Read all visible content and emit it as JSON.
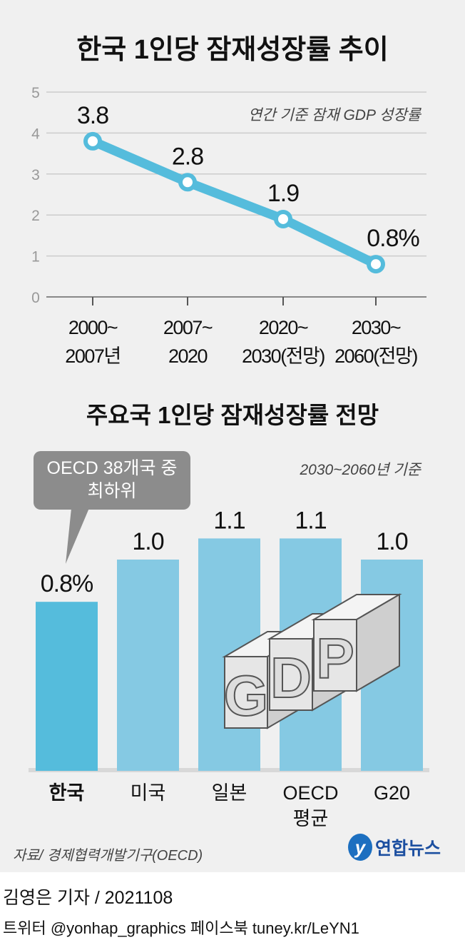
{
  "chart_data": [
    {
      "type": "line",
      "title": "한국 1인당 잠재성장률 추이",
      "subtitle": "연간 기준 잠재 GDP 성장률",
      "categories": [
        [
          "2000~",
          "2007년"
        ],
        [
          "2007~",
          "2020"
        ],
        [
          "2020~",
          "2030(전망)"
        ],
        [
          "2030~",
          "2060(전망)"
        ]
      ],
      "values": [
        3.8,
        2.8,
        1.9,
        0.8
      ],
      "data_labels": [
        "3.8",
        "2.8",
        "1.9",
        "0.8%"
      ],
      "ylim": [
        0,
        5
      ],
      "yticks": [
        "0",
        "1",
        "2",
        "3",
        "4",
        "5"
      ],
      "grid": true,
      "color": "#55bcdc"
    },
    {
      "type": "bar",
      "title": "주요국 1인당 잠재성장률 전망",
      "subtitle": "2030~2060년 기준",
      "categories": [
        [
          "한국"
        ],
        [
          "미국"
        ],
        [
          "일본"
        ],
        [
          "OECD",
          "평균"
        ],
        [
          "G20"
        ]
      ],
      "values": [
        0.8,
        1.0,
        1.1,
        1.1,
        1.0
      ],
      "data_labels": [
        "0.8%",
        "1.0",
        "1.1",
        "1.1",
        "1.0"
      ],
      "ylim": [
        0,
        1.1
      ],
      "highlight_color": "#55bcdc",
      "color": "#85c9e3",
      "annotation": [
        "OECD 38개국 중",
        "최하위"
      ],
      "illustration_text": "GDP"
    }
  ],
  "source": "자료/ 경제협력개발기구(OECD)",
  "logo": {
    "mark": "y",
    "text": "연합뉴스"
  },
  "credit": {
    "author": "김영은 기자 / 2021108",
    "social": "트위터 @yonhap_graphics  페이스북 tuney.kr/LeYN1"
  }
}
